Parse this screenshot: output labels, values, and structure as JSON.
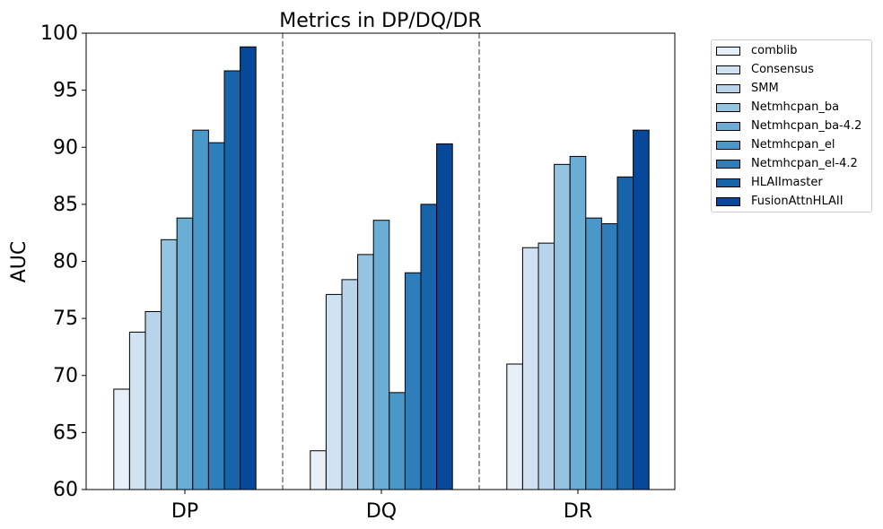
{
  "chart_data": {
    "type": "bar",
    "title": "Metrics in DP/DQ/DR",
    "xlabel": "",
    "ylabel": "AUC",
    "ylim": [
      60,
      100
    ],
    "yticks": [
      "60",
      "65",
      "70",
      "75",
      "80",
      "85",
      "90",
      "95",
      "100"
    ],
    "categories": [
      "DP",
      "DQ",
      "DR"
    ],
    "grid": false,
    "legend_position": "outside-right-top",
    "series": [
      {
        "name": "comblib",
        "color": "#e7eff8",
        "values": [
          68.8,
          63.4,
          71.0
        ]
      },
      {
        "name": "Consensus",
        "color": "#d0e1f2",
        "values": [
          73.8,
          77.1,
          81.2
        ]
      },
      {
        "name": "SMM",
        "color": "#b8d4ea",
        "values": [
          75.6,
          78.4,
          81.6
        ]
      },
      {
        "name": "Netmhcpan_ba",
        "color": "#94c4df",
        "values": [
          81.9,
          80.6,
          88.5
        ]
      },
      {
        "name": "Netmhcpan_ba-4.2",
        "color": "#6aadd5",
        "values": [
          83.8,
          83.6,
          89.2
        ]
      },
      {
        "name": "Netmhcpan_el",
        "color": "#4a97c9",
        "values": [
          91.5,
          68.5,
          83.8
        ]
      },
      {
        "name": "Netmhcpan_el-4.2",
        "color": "#2e7ebc",
        "values": [
          90.4,
          79.0,
          83.3
        ]
      },
      {
        "name": "HLAIImaster",
        "color": "#1764ab",
        "values": [
          96.7,
          85.0,
          87.4
        ]
      },
      {
        "name": "FusionAttnHLAII",
        "color": "#08489a",
        "values": [
          98.8,
          90.3,
          91.5
        ]
      }
    ]
  }
}
